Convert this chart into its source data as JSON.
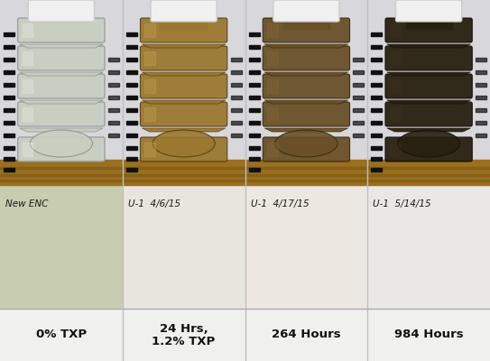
{
  "figsize": [
    5.43,
    4.0
  ],
  "dpi": 100,
  "panels": [
    {
      "label": "0% TXP",
      "label_line2": "",
      "jar_fill": "#c8cec0",
      "jar_edge": "#909090",
      "jar_highlight": "#e8ece8",
      "blot_color": "#c8cdb0",
      "handwriting": "New ENC"
    },
    {
      "label": "24 Hrs,",
      "label_line2": "1.2% TXP",
      "jar_fill": "#9a7830",
      "jar_edge": "#5a4010",
      "jar_highlight": "#c8a050",
      "blot_color": "#e8e6dc",
      "handwriting": "U-1  4/6/15"
    },
    {
      "label": "264 Hours",
      "label_line2": "",
      "jar_fill": "#6a5028",
      "jar_edge": "#3a2c10",
      "jar_highlight": "#8a6838",
      "blot_color": "#ece8e0",
      "handwriting": "U-1  4/17/15"
    },
    {
      "label": "984 Hours",
      "label_line2": "",
      "jar_fill": "#282010",
      "jar_edge": "#181008",
      "jar_highlight": "#403020",
      "blot_color": "#eae8e4",
      "handwriting": "U-1  5/14/15"
    }
  ],
  "wall_color": "#d8d8dc",
  "wood_color": "#9a7020",
  "wood_color2": "#7a5810",
  "label_bg": "#f0f0ee",
  "sep_color": "#c0c0c0",
  "label_fontsize": 9.5,
  "hw_fontsize": 7.5,
  "label_color": "#111111"
}
